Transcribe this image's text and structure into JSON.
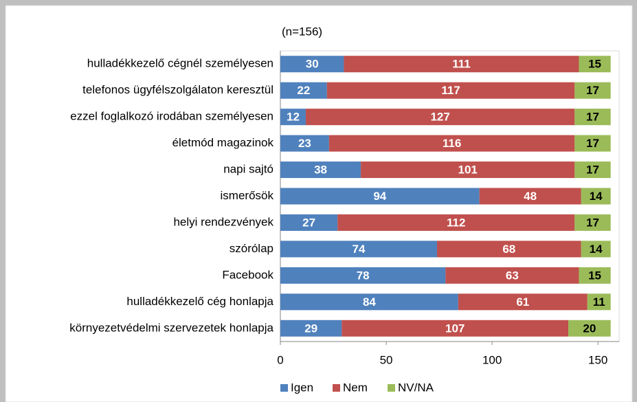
{
  "chart_data": {
    "type": "stacked-bar-horizontal",
    "title": "(n=156)",
    "categories": [
      "hulladékkezelő cégnél személyesen",
      "telefonos ügyfélszolgálaton keresztül",
      "ezzel foglalkozó irodában személyesen",
      "életmód magazinok",
      "napi sajtó",
      "ismerősök",
      "helyi rendezvények",
      "szórólap",
      "Facebook",
      "hulladékkezelő cég honlapja",
      "környezetvédelmi szervezetek honlapja"
    ],
    "series": [
      {
        "name": "Igen",
        "color": "#4f81bd",
        "label_color": "#ffffff",
        "values": [
          30,
          22,
          12,
          23,
          38,
          94,
          27,
          74,
          78,
          84,
          29
        ]
      },
      {
        "name": "Nem",
        "color": "#c0504d",
        "label_color": "#ffffff",
        "values": [
          111,
          117,
          127,
          116,
          101,
          48,
          112,
          68,
          63,
          61,
          107
        ]
      },
      {
        "name": "NV/NA",
        "color": "#9bbb59",
        "label_color": "#000000",
        "values": [
          15,
          17,
          17,
          17,
          17,
          14,
          17,
          14,
          15,
          11,
          20
        ]
      }
    ],
    "xlim": [
      0,
      160
    ],
    "xticks": [
      0,
      50,
      100,
      150
    ],
    "legend": "bottom"
  }
}
